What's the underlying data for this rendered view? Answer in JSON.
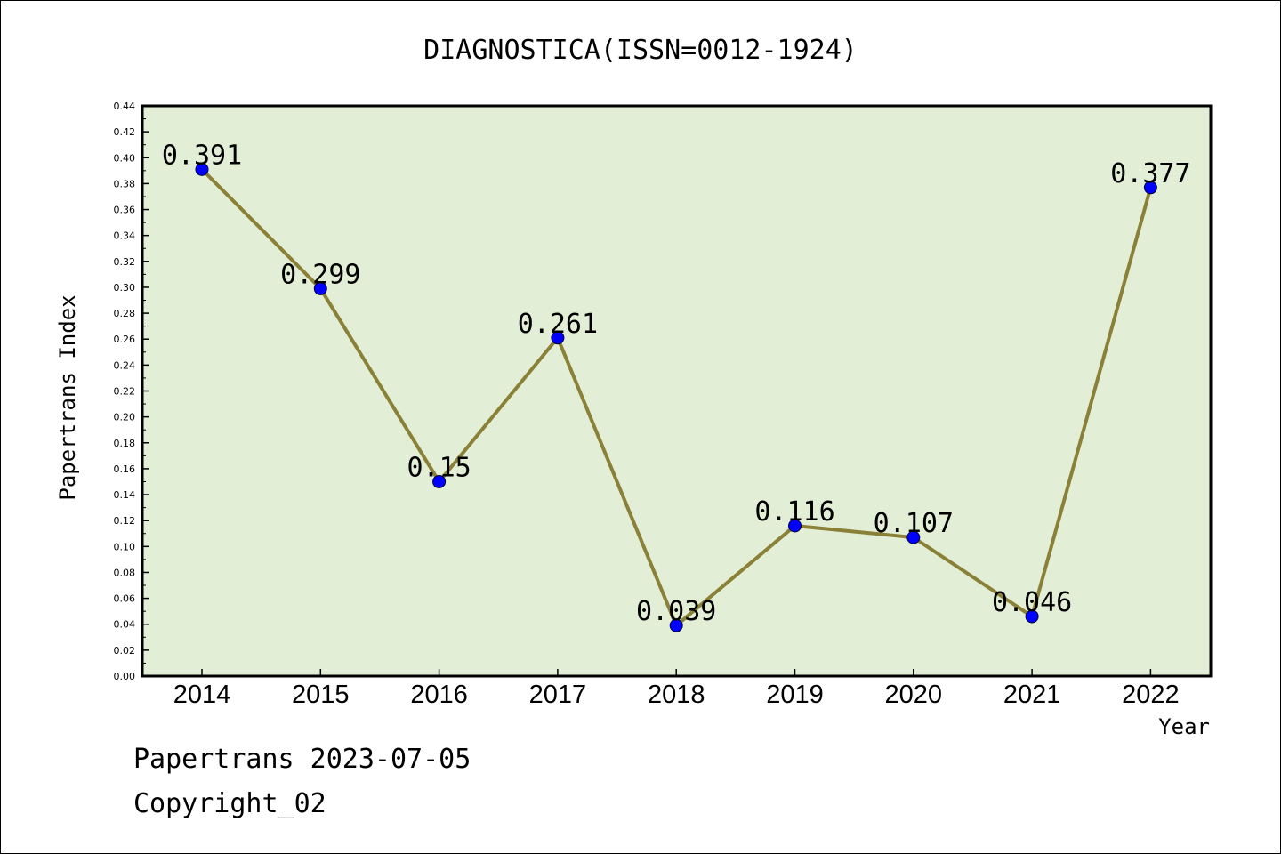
{
  "chart_data": {
    "type": "line",
    "title": "DIAGNOSTICA(ISSN=0012-1924)",
    "xlabel": "Year",
    "ylabel": "Papertrans Index",
    "categories": [
      "2014",
      "2015",
      "2016",
      "2017",
      "2018",
      "2019",
      "2020",
      "2021",
      "2022"
    ],
    "values": [
      0.391,
      0.299,
      0.15,
      0.261,
      0.039,
      0.116,
      0.107,
      0.046,
      0.377
    ],
    "data_labels": [
      "0.391",
      "0.299",
      "0.15",
      "0.261",
      "0.039",
      "0.116",
      "0.107",
      "0.046",
      "0.377"
    ],
    "ylim": [
      0,
      0.44
    ],
    "ytick_step": 0.02,
    "grid": false,
    "line_color": "#8b8038",
    "marker_color": "#0000ff",
    "plot_background": "#e2efd6"
  },
  "footer": {
    "stamp": "Papertrans 2023-07-05",
    "copyright": "Copyright_02"
  }
}
